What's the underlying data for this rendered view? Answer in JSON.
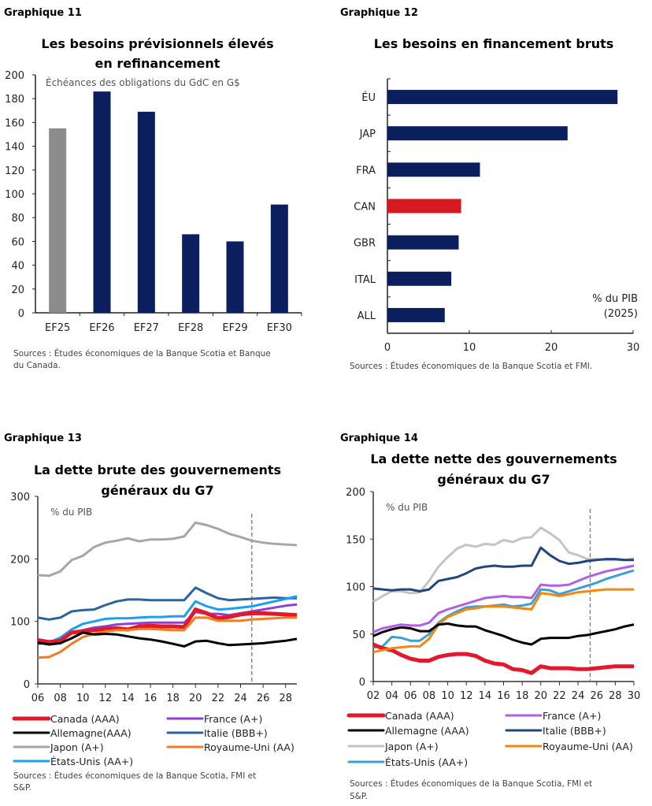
{
  "chart_data": [
    {
      "label": "Graphique 11",
      "type": "bar",
      "title": [
        "Les besoins prévisionnels élevés",
        "en refinancement"
      ],
      "note": "Échéances des obligations du GdC en G$",
      "categories": [
        "EF25",
        "EF26",
        "EF27",
        "EF28",
        "EF29",
        "EF30"
      ],
      "values": [
        155,
        186,
        169,
        66,
        60,
        91
      ],
      "colors": [
        "#8c8c8c",
        "#0b1f5e",
        "#0b1f5e",
        "#0b1f5e",
        "#0b1f5e",
        "#0b1f5e"
      ],
      "ylim": [
        0,
        200
      ],
      "yticks": [
        0,
        20,
        40,
        60,
        80,
        100,
        120,
        140,
        160,
        180,
        200
      ],
      "sources": [
        "Sources : Études économiques de la Banque Scotia et Banque",
        "du Canada."
      ]
    },
    {
      "label": "Graphique 12",
      "type": "bar",
      "orientation": "horizontal",
      "title": [
        "Les besoins en financement bruts"
      ],
      "note": [
        "% du PIB",
        "(2025)"
      ],
      "categories": [
        "ÉU",
        "JAP",
        "FRA",
        "CAN",
        "GBR",
        "ITAL",
        "ALL"
      ],
      "values": [
        28.1,
        22.0,
        11.3,
        9.0,
        8.7,
        7.8,
        7.0
      ],
      "colors": [
        "#0b1f5e",
        "#0b1f5e",
        "#0b1f5e",
        "#d71920",
        "#0b1f5e",
        "#0b1f5e",
        "#0b1f5e"
      ],
      "xlim": [
        0,
        30
      ],
      "xticks": [
        0,
        10,
        20,
        30
      ],
      "sources": [
        "Sources : Études économiques de la Banque Scotia et FMI."
      ]
    },
    {
      "label": "Graphique 13",
      "type": "line",
      "title": [
        "La dette brute des gouvernements",
        "généraux du G7"
      ],
      "note": "% du PIB",
      "xlim": [
        2006,
        2029
      ],
      "xticks": [
        "06",
        "08",
        "10",
        "12",
        "14",
        "16",
        "18",
        "20",
        "22",
        "24",
        "26",
        "28"
      ],
      "ylim": [
        0,
        300
      ],
      "yticks": [
        0,
        100,
        200,
        300
      ],
      "forecast_start": 2025,
      "series": [
        {
          "name": "Canada (AAA)",
          "color": "#e3182d",
          "values": [
            70,
            67,
            69,
            82,
            84,
            86,
            88,
            89,
            87,
            92,
            93,
            92,
            92,
            91,
            119,
            113,
            105,
            107,
            111,
            113,
            113,
            112,
            111,
            110
          ]
        },
        {
          "name": "France (A+)",
          "color": "#8e3fd6",
          "values": [
            64,
            66,
            70,
            83,
            86,
            90,
            92,
            95,
            96,
            97,
            98,
            98,
            98,
            98,
            115,
            112,
            112,
            110,
            113,
            116,
            119,
            122,
            125,
            127
          ]
        },
        {
          "name": "Allemagne(AAA)",
          "color": "#000000",
          "values": [
            66,
            63,
            65,
            73,
            82,
            79,
            80,
            79,
            76,
            73,
            71,
            68,
            64,
            60,
            68,
            69,
            65,
            62,
            63,
            64,
            65,
            67,
            69,
            72
          ]
        },
        {
          "name": "Italie (BBB+)",
          "color": "#2a64a0",
          "values": [
            106,
            103,
            106,
            116,
            118,
            119,
            126,
            132,
            135,
            135,
            134,
            134,
            134,
            134,
            154,
            145,
            137,
            134,
            135,
            136,
            137,
            138,
            137,
            137
          ]
        },
        {
          "name": "Japon (A+)",
          "color": "#a6a6a6",
          "values": [
            174,
            173,
            180,
            198,
            205,
            219,
            226,
            229,
            233,
            228,
            231,
            231,
            232,
            236,
            258,
            254,
            248,
            240,
            235,
            229,
            226,
            224,
            223,
            222
          ]
        },
        {
          "name": "Royaume-Uni (AA)",
          "color": "#f47c20",
          "values": [
            42,
            43,
            51,
            64,
            75,
            80,
            84,
            86,
            86,
            88,
            88,
            87,
            86,
            86,
            106,
            106,
            101,
            101,
            101,
            103,
            104,
            105,
            106,
            106
          ]
        },
        {
          "name": "États-Unis (AA+)",
          "color": "#1aa0f0",
          "values": [
            65,
            66,
            74,
            87,
            96,
            100,
            104,
            105,
            105,
            106,
            107,
            107,
            108,
            108,
            132,
            124,
            119,
            120,
            122,
            124,
            128,
            132,
            136,
            140
          ]
        }
      ],
      "sources": [
        "Sources : Études économiques de la Banque Scotia, FMI et",
        "S&P."
      ]
    },
    {
      "label": "Graphique 14",
      "type": "line",
      "title": [
        "La dette nette des gouvernements",
        "généraux du G7"
      ],
      "note": "% du PIB",
      "xlim": [
        2002,
        2030
      ],
      "xticks": [
        "02",
        "04",
        "06",
        "08",
        "10",
        "12",
        "14",
        "16",
        "18",
        "20",
        "22",
        "24",
        "26",
        "28",
        "30"
      ],
      "ylim": [
        0,
        200
      ],
      "yticks": [
        0,
        50,
        100,
        150,
        200
      ],
      "forecast_start": 2025.3,
      "series": [
        {
          "name": "Canada (AAA)",
          "color": "#e3182d",
          "values": [
            39,
            35,
            33,
            28,
            24,
            22,
            22,
            26,
            28,
            29,
            29,
            27,
            22,
            19,
            18,
            13,
            12,
            9,
            16,
            14,
            14,
            14,
            13,
            13,
            14,
            15,
            16,
            16,
            16
          ]
        },
        {
          "name": "France (A+)",
          "color": "#b35ee8",
          "values": [
            52,
            56,
            58,
            60,
            59,
            59,
            62,
            72,
            76,
            79,
            82,
            85,
            88,
            89,
            90,
            89,
            89,
            88,
            102,
            101,
            101,
            102,
            106,
            110,
            113,
            116,
            118,
            120,
            122
          ]
        },
        {
          "name": "Allemagne (AAA)",
          "color": "#000000",
          "values": [
            48,
            52,
            55,
            57,
            56,
            53,
            53,
            60,
            61,
            59,
            58,
            58,
            54,
            51,
            48,
            44,
            41,
            39,
            45,
            46,
            46,
            46,
            48,
            49,
            51,
            53,
            55,
            58,
            60
          ]
        },
        {
          "name": "Italie (BBB+)",
          "color": "#1f4680",
          "values": [
            98,
            97,
            96,
            97,
            97,
            95,
            97,
            106,
            108,
            110,
            114,
            119,
            121,
            122,
            121,
            121,
            122,
            122,
            141,
            133,
            127,
            124,
            125,
            127,
            128,
            129,
            129,
            128,
            128
          ]
        },
        {
          "name": "Japon (A+)",
          "color": "#c4c4c4",
          "values": [
            84,
            90,
            95,
            95,
            93,
            94,
            106,
            121,
            131,
            140,
            144,
            142,
            145,
            144,
            149,
            147,
            151,
            152,
            162,
            156,
            149,
            136,
            133,
            129,
            129,
            128,
            128,
            128,
            130
          ]
        },
        {
          "name": "Royaume-Uni (AA)",
          "color": "#f7860f",
          "values": [
            31,
            33,
            35,
            36,
            37,
            37,
            45,
            60,
            68,
            72,
            76,
            77,
            79,
            79,
            79,
            78,
            77,
            76,
            93,
            92,
            90,
            92,
            94,
            95,
            96,
            97,
            97,
            97,
            97
          ]
        },
        {
          "name": "États-Unis (AA+)",
          "color": "#3c9fd6",
          "values": [
            36,
            37,
            47,
            46,
            43,
            43,
            50,
            62,
            69,
            74,
            78,
            79,
            79,
            80,
            81,
            79,
            80,
            82,
            97,
            96,
            92,
            95,
            98,
            101,
            104,
            108,
            111,
            114,
            117
          ]
        }
      ],
      "sources": [
        "Sources : Études économiques de la Banque Scotia, FMI et",
        "S&P."
      ]
    }
  ]
}
